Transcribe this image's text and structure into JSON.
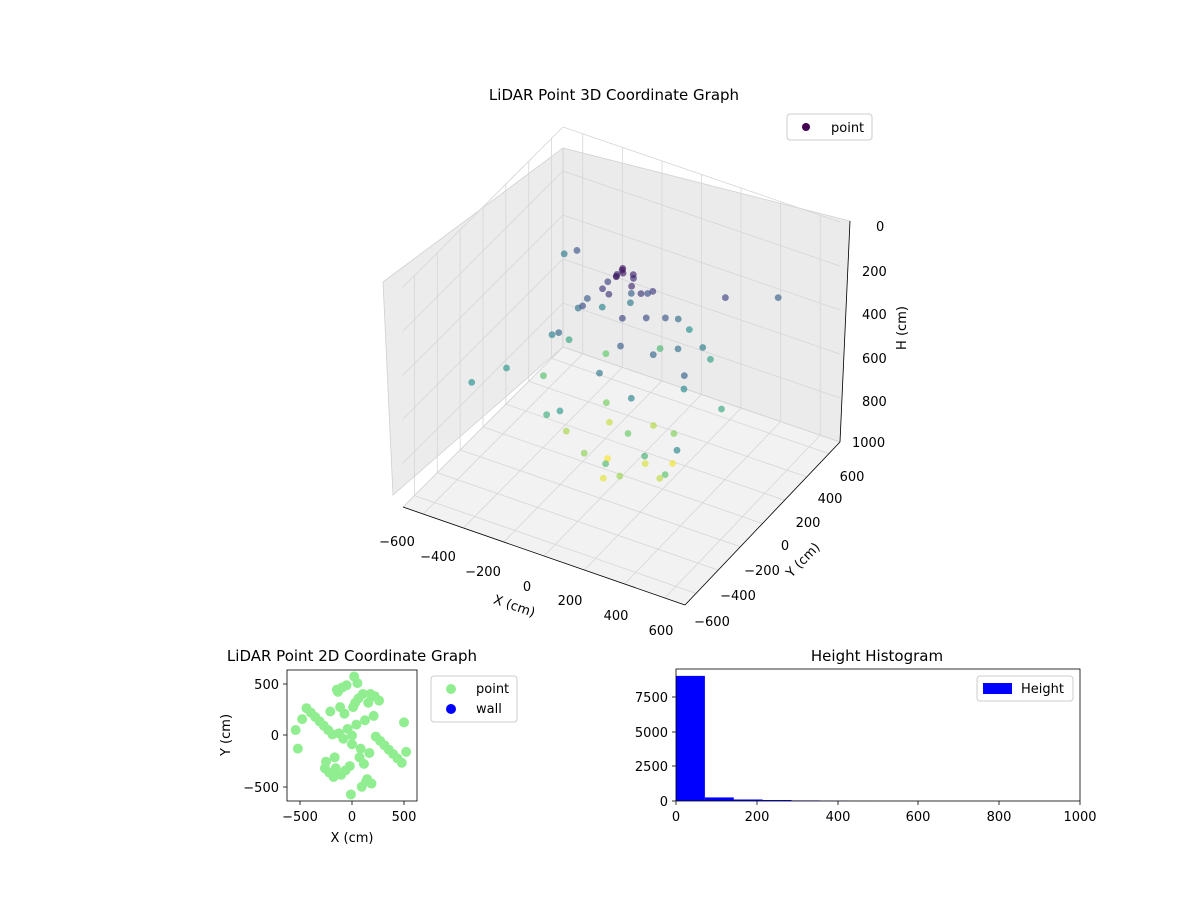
{
  "colors": {
    "viridis_dark": "#440154",
    "point2d": "#90ee90",
    "wall": "#0000ff",
    "histogram": "#0000ff"
  },
  "chart_data": [
    {
      "type": "scatter",
      "projection": "3d",
      "title": "LiDAR Point 3D Coordinate Graph",
      "xlabel": "X (cm)",
      "ylabel": "Y (cm)",
      "zlabel": "H (cm)",
      "xlim": [
        -700,
        700
      ],
      "ylim": [
        -700,
        700
      ],
      "zlim": [
        0,
        1000
      ],
      "z_axis_inverted": true,
      "x_ticks": [
        "−600",
        "−400",
        "−200",
        "0",
        "200",
        "400",
        "600"
      ],
      "y_ticks": [
        "−600",
        "−400",
        "−200",
        "0",
        "200",
        "400",
        "600"
      ],
      "z_ticks": [
        "0",
        "200",
        "400",
        "600",
        "800",
        "1000"
      ],
      "colormap": "viridis",
      "legend": {
        "position": "top-right",
        "entries": [
          "point"
        ]
      },
      "points": [
        {
          "x": -20,
          "y": 30,
          "z": 90
        },
        {
          "x": 10,
          "y": -15,
          "z": 70
        },
        {
          "x": 0,
          "y": 0,
          "z": 60
        },
        {
          "x": -40,
          "y": 20,
          "z": 110
        },
        {
          "x": 30,
          "y": 40,
          "z": 100
        },
        {
          "x": -10,
          "y": -40,
          "z": 80
        },
        {
          "x": 50,
          "y": -10,
          "z": 120
        },
        {
          "x": -60,
          "y": 50,
          "z": 140
        },
        {
          "x": 20,
          "y": 60,
          "z": 130
        },
        {
          "x": -30,
          "y": -70,
          "z": 150
        },
        {
          "x": 80,
          "y": 20,
          "z": 160
        },
        {
          "x": -90,
          "y": -20,
          "z": 170
        },
        {
          "x": 100,
          "y": 90,
          "z": 180
        },
        {
          "x": -120,
          "y": 80,
          "z": 200
        },
        {
          "x": 60,
          "y": -110,
          "z": 210
        },
        {
          "x": 140,
          "y": -40,
          "z": 220
        },
        {
          "x": -150,
          "y": -90,
          "z": 230
        },
        {
          "x": 40,
          "y": 150,
          "z": 240
        },
        {
          "x": 180,
          "y": 60,
          "z": 260
        },
        {
          "x": -200,
          "y": 40,
          "z": 280
        },
        {
          "x": 90,
          "y": -180,
          "z": 290
        },
        {
          "x": -70,
          "y": 200,
          "z": 300
        },
        {
          "x": 220,
          "y": -120,
          "z": 320
        },
        {
          "x": -230,
          "y": -160,
          "z": 340
        },
        {
          "x": 160,
          "y": 210,
          "z": 350
        },
        {
          "x": 260,
          "y": 30,
          "z": 360
        },
        {
          "x": -280,
          "y": 100,
          "z": 380
        },
        {
          "x": 30,
          "y": -260,
          "z": 390
        },
        {
          "x": -120,
          "y": 280,
          "z": 400
        },
        {
          "x": 300,
          "y": 180,
          "z": 420
        },
        {
          "x": -320,
          "y": -60,
          "z": 430
        },
        {
          "x": 200,
          "y": -280,
          "z": 440
        },
        {
          "x": -250,
          "y": 260,
          "z": 450
        },
        {
          "x": 340,
          "y": -60,
          "z": 470
        },
        {
          "x": 380,
          "y": 240,
          "z": 200
        },
        {
          "x": -400,
          "y": 300,
          "z": 260
        },
        {
          "x": 420,
          "y": -200,
          "z": 310
        },
        {
          "x": -440,
          "y": -250,
          "z": 520
        },
        {
          "x": 120,
          "y": 380,
          "z": 500
        },
        {
          "x": -100,
          "y": -380,
          "z": 540
        },
        {
          "x": 260,
          "y": 320,
          "z": 560
        },
        {
          "x": -360,
          "y": 160,
          "z": 580
        },
        {
          "x": 450,
          "y": 80,
          "z": 600
        },
        {
          "x": -200,
          "y": -320,
          "z": 620
        },
        {
          "x": 300,
          "y": -340,
          "z": 640
        },
        {
          "x": -50,
          "y": 420,
          "z": 660
        },
        {
          "x": 150,
          "y": -420,
          "z": 680
        },
        {
          "x": -420,
          "y": 40,
          "z": 700
        },
        {
          "x": 380,
          "y": -300,
          "z": 720
        },
        {
          "x": -300,
          "y": 380,
          "z": 740
        },
        {
          "x": 60,
          "y": -60,
          "z": 760
        },
        {
          "x": -150,
          "y": 120,
          "z": 780
        },
        {
          "x": 200,
          "y": 100,
          "z": 800
        },
        {
          "x": -80,
          "y": -200,
          "z": 820
        },
        {
          "x": 120,
          "y": -240,
          "z": 840
        },
        {
          "x": -260,
          "y": -40,
          "z": 860
        },
        {
          "x": 30,
          "y": 220,
          "z": 880
        },
        {
          "x": 230,
          "y": -80,
          "z": 900
        },
        {
          "x": -180,
          "y": 200,
          "z": 920
        },
        {
          "x": 90,
          "y": 40,
          "z": 940
        },
        {
          "x": -30,
          "y": -120,
          "z": 960
        },
        {
          "x": 160,
          "y": 160,
          "z": 980
        },
        {
          "x": -110,
          "y": 60,
          "z": 990
        },
        {
          "x": 500,
          "y": 500,
          "z": 300
        },
        {
          "x": -550,
          "y": 450,
          "z": 400
        },
        {
          "x": 550,
          "y": -500,
          "z": 450
        },
        {
          "x": -500,
          "y": -450,
          "z": 500
        }
      ]
    },
    {
      "type": "scatter",
      "title": "LiDAR Point 2D Coordinate Graph",
      "xlabel": "X (cm)",
      "ylabel": "Y (cm)",
      "xlim": [
        -600,
        600
      ],
      "ylim": [
        -600,
        600
      ],
      "x_ticks": [
        "−500",
        "0",
        "500"
      ],
      "y_ticks": [
        "500",
        "0",
        "−500"
      ],
      "legend": {
        "position": "outside-right",
        "entries": [
          "point",
          "wall"
        ]
      },
      "series": [
        {
          "name": "point",
          "x": [
            -120,
            -80,
            -40,
            0,
            40,
            80,
            120,
            160,
            200,
            -160,
            -200,
            -240,
            10,
            -20,
            30,
            -60,
            60,
            -100,
            100,
            140,
            -140,
            180,
            -180,
            220,
            -220,
            260,
            -260,
            300,
            -300,
            340,
            -340,
            380,
            -380,
            420,
            -420,
            460,
            -460,
            500,
            -520,
            480,
            -500,
            20,
            -10,
            50,
            -50,
            90,
            -90,
            130,
            -130,
            170,
            -170,
            210,
            -210,
            250,
            -250,
            0,
            70,
            -70,
            110,
            -110,
            150,
            -150
          ],
          "y": [
            20,
            -30,
            60,
            -80,
            100,
            -120,
            140,
            -160,
            180,
            -200,
            220,
            -240,
            260,
            -280,
            300,
            -320,
            340,
            -360,
            380,
            -400,
            420,
            -440,
            10,
            -10,
            50,
            -50,
            90,
            -90,
            130,
            -130,
            170,
            -170,
            210,
            -210,
            250,
            -250,
            150,
            -150,
            50,
            120,
            -120,
            540,
            -540,
            480,
            460,
            -470,
            440,
            -420,
            400,
            380,
            -380,
            360,
            -340,
            320,
            -300,
            0,
            -200,
            200,
            -260,
            260,
            300,
            -300
          ]
        },
        {
          "name": "wall",
          "x": [],
          "y": []
        }
      ]
    },
    {
      "type": "bar",
      "title": "Height Histogram",
      "xlim": [
        0,
        1000
      ],
      "ylim": [
        0,
        9600
      ],
      "x_ticks": [
        "0",
        "200",
        "400",
        "600",
        "800",
        "1000"
      ],
      "y_ticks": [
        "0",
        "2500",
        "5000",
        "7500"
      ],
      "legend": {
        "position": "top-right",
        "entries": [
          "Height"
        ]
      },
      "bin_width": 71.5,
      "bins": [
        {
          "start": 0,
          "count": 9100
        },
        {
          "start": 71.5,
          "count": 260
        },
        {
          "start": 143,
          "count": 110
        },
        {
          "start": 214.5,
          "count": 70
        },
        {
          "start": 286,
          "count": 40
        },
        {
          "start": 357.5,
          "count": 15
        },
        {
          "start": 429,
          "count": 8
        },
        {
          "start": 500.5,
          "count": 5
        },
        {
          "start": 572,
          "count": 4
        },
        {
          "start": 643.5,
          "count": 3
        },
        {
          "start": 715,
          "count": 2
        },
        {
          "start": 786.5,
          "count": 2
        },
        {
          "start": 858,
          "count": 1
        },
        {
          "start": 929.5,
          "count": 1
        }
      ]
    }
  ]
}
